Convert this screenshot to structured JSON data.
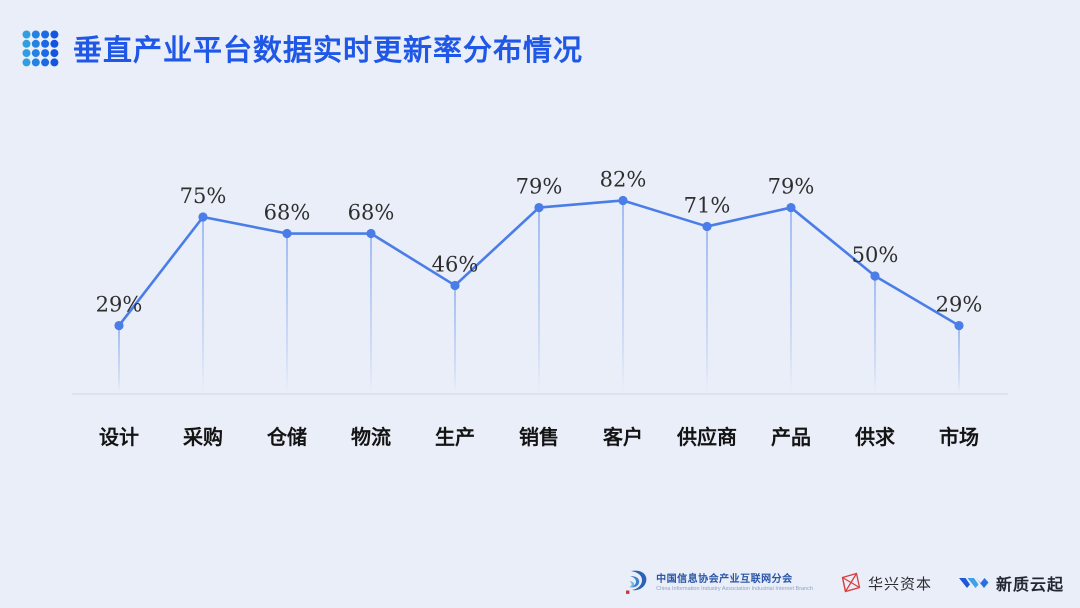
{
  "page": {
    "background": "#e9eef8",
    "accent_blue": "#1f57e7",
    "line_blue": "#4a7de8",
    "label_color": "#2e2e2e",
    "axis_label_color": "#141414",
    "baseline_color": "#d2d6de"
  },
  "header": {
    "icon": "dot-grid-icon",
    "title": "垂直产业平台数据实时更新率分布情况"
  },
  "chart_data": {
    "type": "line",
    "title": "垂直产业平台数据实时更新率分布情况",
    "categories": [
      "设计",
      "采购",
      "仓储",
      "物流",
      "生产",
      "销售",
      "客户",
      "供应商",
      "产品",
      "供求",
      "市场"
    ],
    "values": [
      29,
      75,
      68,
      68,
      46,
      79,
      82,
      71,
      79,
      50,
      29
    ],
    "unit": "%",
    "xlabel": "",
    "ylabel": "",
    "ylim": [
      0,
      100
    ],
    "grid": false,
    "legend": false,
    "point_labels": [
      "29%",
      "75%",
      "68%",
      "68%",
      "46%",
      "79%",
      "82%",
      "71%",
      "79%",
      "50%",
      "29%"
    ],
    "line_color": "#4a7de8",
    "marker": "circle",
    "drop_lines": true
  },
  "footer": {
    "association": {
      "name": "中国信息协会产业互联网分会",
      "name_en": "China Information Industry Association Industrial Internet Branch"
    },
    "huaxing": {
      "name": "华兴资本"
    },
    "xinzhiyunqi": {
      "name": "新质云起"
    }
  }
}
